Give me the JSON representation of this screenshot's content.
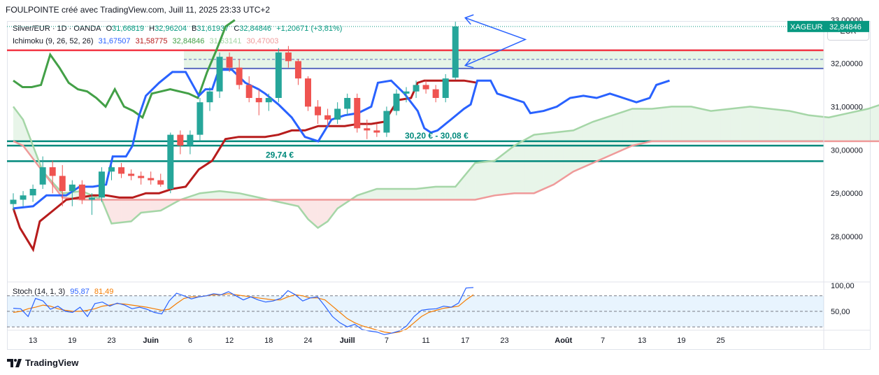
{
  "header": {
    "text": "FOULPOINTE créé avec TradingView.com, Juill 11, 2025 23:33 UTC+2"
  },
  "legend": {
    "symbol": "Silver/EUR · 1D · OANDA",
    "o_label": "O",
    "o_value": "31,66819",
    "h_label": "H",
    "h_value": "32,96204",
    "b_label": "B",
    "b_value": "31,61937",
    "c_label": "C",
    "c_value": "32,84846",
    "change": "+1,20671 (+3,81%)",
    "ichimoku_label": "Ichimoku (9, 26, 52, 26)",
    "ichimoku_values": [
      "31,67507",
      "31,58775",
      "32,84846",
      "31,63141",
      "30,47003"
    ],
    "stoch_label": "Stoch (14, 1, 3)",
    "stoch_values": [
      "95,87",
      "81,49"
    ]
  },
  "currency_button": "EUR",
  "price_tag": {
    "symbol": "XAGEUR",
    "value": "32,84846"
  },
  "annotations": {
    "level_1": "29,74 €",
    "zone_2": "30,20 € - 30,08 €"
  },
  "branding": {
    "name": "TradingView"
  },
  "colors": {
    "up": "#26a69a",
    "down": "#ef5350",
    "tenkan": "#2962ff",
    "kijun": "#b71c1c",
    "chikou": "#43a047",
    "span_a": "#a5d6a7",
    "span_b": "#ef9a9a",
    "stoch_k": "#2962ff",
    "stoch_d": "#f57c00",
    "level_green": "#00897b",
    "level_red": "#f23645",
    "zone_blue": "#5c6bc0",
    "arrow": "#2962ff"
  },
  "chart_data": {
    "type": "candlestick",
    "y_ticks": [
      "33,00000",
      "32,00000",
      "31,00000",
      "30,00000",
      "29,00000",
      "28,00000"
    ],
    "y_range": [
      27.0,
      33.3
    ],
    "x_ticks": [
      {
        "i": 2,
        "label": "13"
      },
      {
        "i": 6,
        "label": "19"
      },
      {
        "i": 10,
        "label": "23"
      },
      {
        "i": 14,
        "label": "Juin"
      },
      {
        "i": 18,
        "label": "6"
      },
      {
        "i": 22,
        "label": "12"
      },
      {
        "i": 26,
        "label": "18"
      },
      {
        "i": 30,
        "label": "24"
      },
      {
        "i": 34,
        "label": "Juill"
      },
      {
        "i": 38,
        "label": "7"
      },
      {
        "i": 42,
        "label": "11"
      },
      {
        "i": 46,
        "label": "17"
      },
      {
        "i": 50,
        "label": "23"
      },
      {
        "i": 56,
        "label": "Août"
      },
      {
        "i": 60,
        "label": "7"
      },
      {
        "i": 64,
        "label": "13"
      },
      {
        "i": 68,
        "label": "19"
      },
      {
        "i": 72,
        "label": "25"
      }
    ],
    "candles": [
      [
        28.75,
        29.0,
        28.6,
        28.85
      ],
      [
        28.85,
        29.05,
        28.7,
        28.95
      ],
      [
        28.95,
        29.2,
        28.8,
        29.1
      ],
      [
        29.2,
        29.85,
        29.1,
        29.6
      ],
      [
        29.6,
        29.75,
        29.0,
        29.4
      ],
      [
        29.4,
        29.65,
        28.7,
        29.05
      ],
      [
        29.05,
        29.3,
        28.7,
        29.2
      ],
      [
        29.2,
        29.3,
        28.75,
        28.85
      ],
      [
        28.85,
        29.0,
        28.5,
        28.9
      ],
      [
        28.9,
        29.6,
        28.8,
        29.5
      ],
      [
        29.5,
        29.65,
        29.3,
        29.6
      ],
      [
        29.6,
        29.7,
        29.35,
        29.45
      ],
      [
        29.45,
        29.55,
        29.3,
        29.4
      ],
      [
        29.4,
        29.5,
        29.2,
        29.35
      ],
      [
        29.35,
        29.5,
        29.2,
        29.3
      ],
      [
        29.3,
        29.45,
        29.15,
        29.2
      ],
      [
        29.1,
        30.4,
        29.0,
        30.35
      ],
      [
        30.35,
        30.45,
        29.9,
        30.1
      ],
      [
        30.1,
        30.45,
        29.9,
        30.35
      ],
      [
        30.35,
        31.2,
        30.2,
        31.1
      ],
      [
        31.1,
        31.45,
        30.9,
        31.35
      ],
      [
        31.35,
        32.25,
        31.2,
        32.15
      ],
      [
        32.15,
        32.25,
        31.8,
        31.9
      ],
      [
        31.9,
        32.1,
        31.4,
        31.5
      ],
      [
        31.5,
        31.7,
        31.1,
        31.2
      ],
      [
        31.2,
        31.4,
        30.8,
        31.1
      ],
      [
        31.1,
        31.3,
        30.9,
        31.2
      ],
      [
        31.2,
        32.35,
        31.1,
        32.25
      ],
      [
        32.25,
        32.4,
        31.9,
        32.05
      ],
      [
        32.05,
        32.1,
        31.5,
        31.65
      ],
      [
        31.65,
        31.7,
        30.9,
        31.0
      ],
      [
        31.0,
        31.15,
        30.6,
        30.8
      ],
      [
        30.8,
        30.95,
        30.55,
        30.7
      ],
      [
        30.7,
        31.1,
        30.6,
        30.95
      ],
      [
        30.95,
        31.3,
        30.8,
        31.2
      ],
      [
        31.2,
        31.3,
        30.4,
        30.5
      ],
      [
        30.5,
        30.7,
        30.25,
        30.45
      ],
      [
        30.45,
        30.6,
        30.3,
        30.4
      ],
      [
        30.4,
        31.0,
        30.3,
        30.9
      ],
      [
        30.9,
        31.4,
        30.8,
        31.3
      ],
      [
        31.3,
        31.45,
        31.1,
        31.35
      ],
      [
        31.35,
        31.6,
        31.2,
        31.5
      ],
      [
        31.5,
        31.6,
        31.3,
        31.4
      ],
      [
        31.4,
        31.5,
        31.1,
        31.2
      ],
      [
        31.2,
        31.75,
        31.1,
        31.65
      ],
      [
        31.67,
        32.96,
        31.62,
        32.85
      ]
    ],
    "candle_x_offset": 0,
    "ichimoku": {
      "tenkan": [
        [
          0,
          28.65
        ],
        [
          3,
          28.7
        ],
        [
          5,
          28.95
        ],
        [
          8,
          28.95
        ],
        [
          10,
          29.15
        ],
        [
          12,
          29.15
        ],
        [
          14,
          29.2
        ],
        [
          15,
          29.85
        ],
        [
          17,
          29.85
        ],
        [
          18,
          30.1
        ],
        [
          19,
          30.8
        ],
        [
          20,
          31.25
        ],
        [
          22,
          31.55
        ],
        [
          24,
          31.8
        ],
        [
          26,
          31.8
        ],
        [
          28,
          31.25
        ],
        [
          29,
          31.4
        ],
        [
          30,
          31.4
        ],
        [
          31,
          31.85
        ],
        [
          33,
          31.85
        ],
        [
          35,
          31.55
        ],
        [
          37,
          31.4
        ],
        [
          38,
          31.3
        ],
        [
          40,
          31.05
        ],
        [
          42,
          30.75
        ],
        [
          44,
          30.3
        ],
        [
          46,
          30.2
        ],
        [
          48,
          30.7
        ],
        [
          50,
          30.8
        ],
        [
          52,
          30.85
        ],
        [
          54,
          31.0
        ],
        [
          55,
          31.55
        ],
        [
          57,
          31.6
        ],
        [
          59,
          31.3
        ],
        [
          61,
          30.9
        ],
        [
          62,
          30.5
        ],
        [
          63,
          30.4
        ],
        [
          64,
          30.45
        ],
        [
          66,
          30.7
        ],
        [
          68,
          30.95
        ],
        [
          69,
          31.05
        ],
        [
          70,
          31.6
        ],
        [
          72,
          31.6
        ],
        [
          73,
          31.3
        ],
        [
          75,
          31.2
        ],
        [
          77,
          31.1
        ],
        [
          78,
          30.85
        ],
        [
          80,
          30.9
        ],
        [
          82,
          31.0
        ],
        [
          84,
          31.2
        ],
        [
          86,
          31.25
        ],
        [
          88,
          31.2
        ],
        [
          90,
          31.3
        ],
        [
          92,
          31.2
        ],
        [
          94,
          31.1
        ],
        [
          96,
          31.2
        ],
        [
          97,
          31.5
        ],
        [
          99,
          31.6
        ]
      ],
      "kijun": [
        [
          0,
          28.65
        ],
        [
          1,
          28.2
        ],
        [
          3,
          27.7
        ],
        [
          4,
          28.35
        ],
        [
          6,
          28.6
        ],
        [
          8,
          28.85
        ],
        [
          10,
          28.9
        ],
        [
          12,
          28.95
        ],
        [
          14,
          28.95
        ],
        [
          16,
          28.9
        ],
        [
          18,
          28.9
        ],
        [
          20,
          29.0
        ],
        [
          22,
          29.0
        ],
        [
          24,
          29.1
        ],
        [
          26,
          29.15
        ],
        [
          28,
          29.55
        ],
        [
          30,
          29.75
        ],
        [
          32,
          30.25
        ],
        [
          34,
          30.3
        ],
        [
          36,
          30.3
        ],
        [
          38,
          30.3
        ],
        [
          40,
          30.35
        ],
        [
          42,
          30.45
        ],
        [
          44,
          30.45
        ],
        [
          46,
          30.55
        ],
        [
          48,
          30.55
        ],
        [
          50,
          30.55
        ],
        [
          52,
          30.6
        ],
        [
          54,
          30.6
        ],
        [
          56,
          30.65
        ],
        [
          58,
          31.15
        ],
        [
          60,
          31.2
        ],
        [
          61,
          31.55
        ],
        [
          62,
          31.6
        ],
        [
          64,
          31.6
        ],
        [
          66,
          31.6
        ],
        [
          68,
          31.6
        ],
        [
          70,
          31.55
        ]
      ],
      "chikou": [
        [
          0,
          31.6
        ],
        [
          1,
          31.45
        ],
        [
          2,
          31.45
        ],
        [
          3,
          31.5
        ],
        [
          4,
          32.2
        ],
        [
          5,
          31.9
        ],
        [
          6,
          31.55
        ],
        [
          7,
          31.4
        ],
        [
          8,
          31.35
        ],
        [
          9,
          31.2
        ],
        [
          10,
          31.0
        ],
        [
          11,
          31.4
        ],
        [
          12,
          31.0
        ],
        [
          13,
          30.9
        ],
        [
          14,
          30.75
        ],
        [
          15,
          31.3
        ],
        [
          16,
          31.35
        ],
        [
          17,
          31.4
        ],
        [
          18,
          31.35
        ],
        [
          19,
          31.3
        ],
        [
          20,
          31.2
        ],
        [
          21,
          31.8
        ],
        [
          22,
          32.3
        ],
        [
          23,
          32.85
        ],
        [
          24,
          33.0
        ]
      ],
      "span_a": [
        [
          0,
          31.0
        ],
        [
          1,
          30.7
        ],
        [
          3,
          29.5
        ],
        [
          5,
          29.0
        ],
        [
          7,
          29.05
        ],
        [
          9,
          28.85
        ],
        [
          10,
          28.3
        ],
        [
          12,
          28.35
        ],
        [
          13,
          28.55
        ],
        [
          15,
          28.6
        ],
        [
          17,
          28.85
        ],
        [
          19,
          29.0
        ],
        [
          21,
          29.05
        ],
        [
          23,
          29.0
        ],
        [
          25,
          28.9
        ],
        [
          27,
          28.8
        ],
        [
          29,
          28.7
        ],
        [
          30,
          28.4
        ],
        [
          31,
          28.2
        ],
        [
          32,
          28.35
        ],
        [
          33,
          28.65
        ],
        [
          35,
          28.95
        ],
        [
          37,
          29.1
        ],
        [
          39,
          29.1
        ],
        [
          41,
          29.1
        ],
        [
          43,
          29.15
        ],
        [
          45,
          29.15
        ],
        [
          47,
          29.7
        ],
        [
          49,
          29.75
        ],
        [
          51,
          30.1
        ],
        [
          53,
          30.35
        ],
        [
          55,
          30.4
        ],
        [
          57,
          30.45
        ],
        [
          59,
          30.65
        ],
        [
          61,
          30.8
        ],
        [
          63,
          30.95
        ],
        [
          65,
          30.95
        ],
        [
          67,
          31.0
        ],
        [
          69,
          31.0
        ],
        [
          71,
          30.9
        ],
        [
          73,
          30.95
        ],
        [
          75,
          31.0
        ],
        [
          77,
          30.95
        ],
        [
          79,
          30.9
        ],
        [
          80,
          30.85
        ],
        [
          81,
          30.8
        ],
        [
          83,
          30.75
        ],
        [
          85,
          30.85
        ],
        [
          87,
          30.95
        ],
        [
          89,
          31.1
        ],
        [
          90,
          31.15
        ],
        [
          91,
          31.6
        ]
      ],
      "span_b": [
        [
          0,
          30.2
        ],
        [
          1,
          30.1
        ],
        [
          3,
          29.5
        ],
        [
          5,
          28.9
        ],
        [
          7,
          28.85
        ],
        [
          9,
          28.85
        ],
        [
          11,
          28.85
        ],
        [
          13,
          28.85
        ],
        [
          15,
          28.85
        ],
        [
          17,
          28.85
        ],
        [
          19,
          28.85
        ],
        [
          21,
          28.85
        ],
        [
          23,
          28.85
        ],
        [
          25,
          28.85
        ],
        [
          27,
          28.85
        ],
        [
          29,
          28.85
        ],
        [
          31,
          28.85
        ],
        [
          33,
          28.85
        ],
        [
          35,
          28.85
        ],
        [
          37,
          28.85
        ],
        [
          39,
          28.85
        ],
        [
          41,
          28.85
        ],
        [
          43,
          28.85
        ],
        [
          45,
          28.85
        ],
        [
          47,
          28.85
        ],
        [
          49,
          28.95
        ],
        [
          51,
          29.0
        ],
        [
          53,
          29.0
        ],
        [
          55,
          29.2
        ],
        [
          57,
          29.5
        ],
        [
          59,
          29.7
        ],
        [
          61,
          29.9
        ],
        [
          63,
          30.1
        ],
        [
          65,
          30.2
        ],
        [
          67,
          30.2
        ],
        [
          69,
          30.2
        ],
        [
          71,
          30.2
        ],
        [
          73,
          30.2
        ],
        [
          75,
          30.2
        ],
        [
          77,
          30.2
        ],
        [
          79,
          30.2
        ],
        [
          81,
          30.2
        ],
        [
          83,
          30.2
        ],
        [
          85,
          30.2
        ],
        [
          87,
          30.2
        ],
        [
          89,
          30.2
        ],
        [
          90,
          30.25
        ],
        [
          91,
          30.45
        ]
      ]
    },
    "levels": [
      {
        "value": 32.3,
        "color": "#f23645"
      },
      {
        "value": 30.2,
        "color": "#00897b"
      },
      {
        "value": 30.1,
        "color": "#00897b"
      },
      {
        "value": 29.74,
        "color": "#00897b"
      }
    ],
    "zone": {
      "from": 31.88,
      "to": 32.3
    },
    "stochastic": {
      "y_ticks": [
        "100,00",
        "50,00"
      ],
      "upper": 80,
      "lower": 20,
      "k": [
        56,
        55,
        40,
        75,
        70,
        54,
        60,
        50,
        48,
        58,
        40,
        65,
        68,
        60,
        66,
        62,
        55,
        58,
        54,
        48,
        45,
        70,
        85,
        80,
        74,
        78,
        80,
        84,
        82,
        88,
        80,
        72,
        78,
        72,
        68,
        70,
        75,
        90,
        82,
        70,
        76,
        78,
        60,
        40,
        28,
        20,
        25,
        15,
        12,
        10,
        5,
        8,
        12,
        22,
        40,
        52,
        54,
        55,
        60,
        58,
        66,
        95,
        96
      ],
      "d": [
        48,
        50,
        55,
        58,
        62,
        60,
        55,
        52,
        50,
        50,
        52,
        55,
        60,
        62,
        65,
        64,
        62,
        60,
        58,
        55,
        52,
        54,
        65,
        75,
        78,
        78,
        80,
        82,
        82,
        84,
        82,
        80,
        78,
        76,
        74,
        72,
        72,
        78,
        82,
        80,
        76,
        76,
        72,
        60,
        48,
        36,
        28,
        22,
        18,
        14,
        10,
        8,
        10,
        16,
        28,
        40,
        48,
        52,
        56,
        58,
        60,
        72,
        82
      ]
    }
  }
}
